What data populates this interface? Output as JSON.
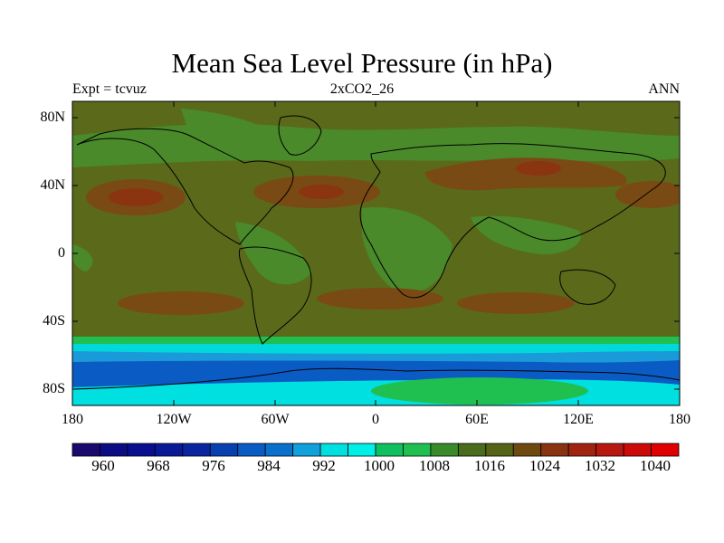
{
  "title": "Mean Sea Level Pressure (in hPa)",
  "subtitle_left": "Expt = tcvuz",
  "subtitle_center": "2xCO2_26",
  "subtitle_right": "ANN",
  "lat_labels": [
    "80N",
    "40N",
    "0",
    "40S",
    "80S"
  ],
  "lon_labels": [
    "180",
    "120W",
    "60W",
    "0",
    "60E",
    "120E",
    "180"
  ],
  "colorbar": {
    "colors": [
      "#1a0a6e",
      "#0b0b84",
      "#0a0f8f",
      "#0a1a96",
      "#0a25a0",
      "#0840b0",
      "#0a5cc4",
      "#0a70cc",
      "#10a0dc",
      "#00e0e0",
      "#00f0e8",
      "#10c060",
      "#20c050",
      "#3a8a2a",
      "#4a6c1c",
      "#566418",
      "#6e4a10",
      "#883410",
      "#a02410",
      "#b81810",
      "#cc0a0a",
      "#e00000"
    ],
    "labels": [
      "960",
      "968",
      "976",
      "984",
      "992",
      "1000",
      "1008",
      "1016",
      "1024",
      "1032",
      "1040"
    ]
  },
  "legend": {
    "color_background": "#5a6a1a",
    "color_low_subtropical": "#4a8a2a",
    "color_high": "#7a4a14",
    "color_southern_ocean_1": "#00d8dc",
    "color_southern_ocean_2": "#1a9ad8",
    "color_southern_ocean_3": "#0a5cc4",
    "color_antarctic_high": "#20c050"
  }
}
